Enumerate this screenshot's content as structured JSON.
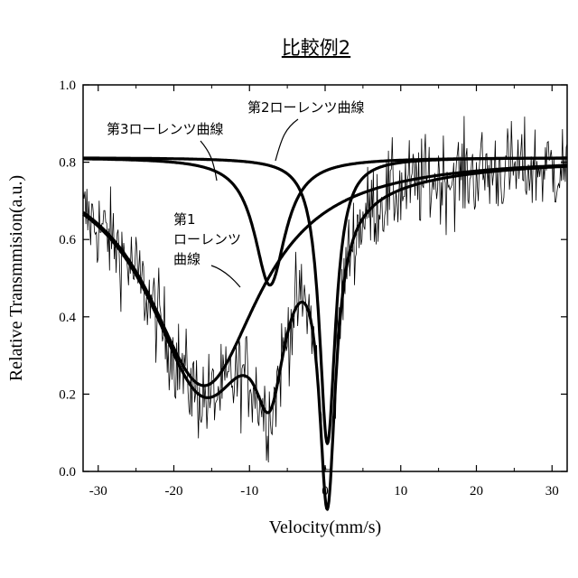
{
  "chart_data": {
    "type": "line",
    "title": "比較例2",
    "xlabel": "Velocity(mm/s)",
    "ylabel": "Relative Transmmision(a.u.)",
    "xlim": [
      -32,
      32
    ],
    "ylim": [
      0,
      1.0
    ],
    "x_ticks": [
      -30,
      -20,
      -10,
      0,
      10,
      20,
      30
    ],
    "x_tick_labels": [
      "-30",
      "-20",
      "-10",
      "0",
      "10",
      "20",
      "30"
    ],
    "y_ticks": [
      0.0,
      0.2,
      0.4,
      0.6,
      0.8,
      1.0
    ],
    "y_tick_labels": [
      "0.0",
      "0.2",
      "0.4",
      "0.6",
      "0.8",
      "1.0"
    ],
    "grid": false,
    "baseline": 0.812,
    "components": [
      {
        "label": "第1\nローレンツ\n曲線",
        "label_lines": [
          "第1",
          "ローレンツ",
          "曲線"
        ],
        "center": -16,
        "depth": 0.59,
        "hwhm": 9.0
      },
      {
        "label": "第2ローレンツ曲線",
        "center": 0.3,
        "depth": 0.74,
        "hwhm": 1.3
      },
      {
        "label": "第3ローレンツ曲線",
        "center": -7.3,
        "depth": 0.33,
        "hwhm": 2.5
      }
    ],
    "annotations": [
      {
        "text": "第3ローレンツ曲線",
        "points_to": [
          -14,
          0.79
        ]
      },
      {
        "text": "第2ローレンツ曲線",
        "points_to": [
          -6.5,
          0.81
        ]
      },
      {
        "text": "第1\nローレンツ\n曲線",
        "points_to": [
          -11.5,
          0.48
        ]
      }
    ],
    "raw_data_description_only": false
  }
}
